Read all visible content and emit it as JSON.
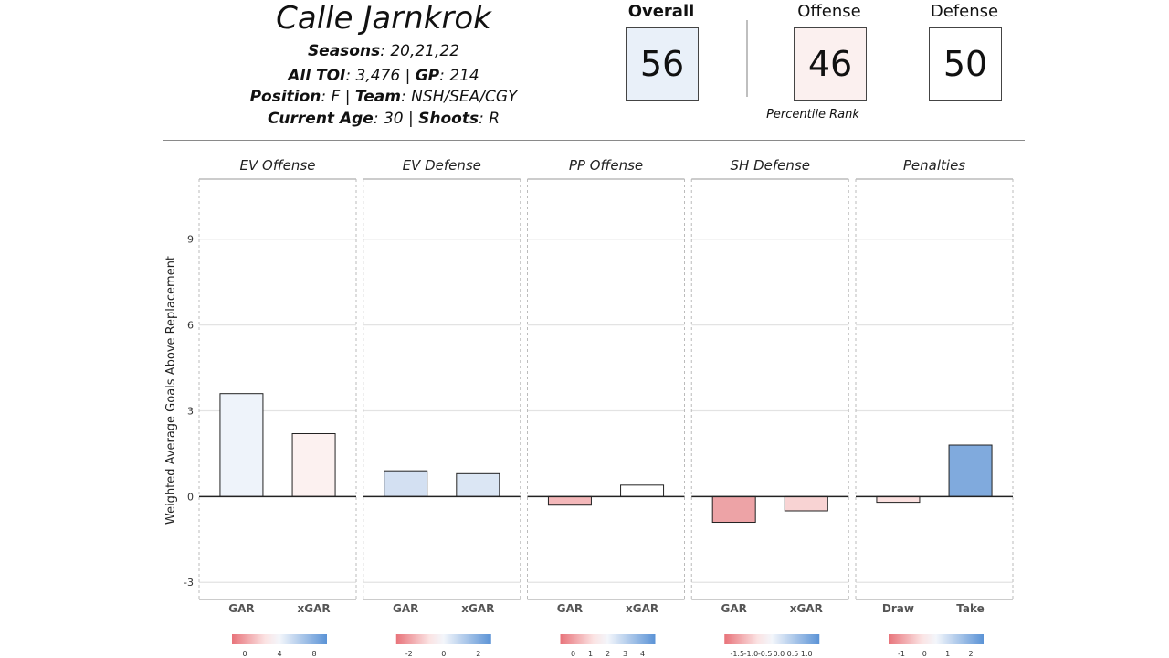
{
  "player": {
    "name": "Calle Jarnkrok",
    "seasons_label": "Seasons",
    "seasons_value": ": 20,21,22",
    "toi_label": "All TOI",
    "toi_value": ": 3,476 | ",
    "gp_label": "GP",
    "gp_value": ": 214",
    "position_label": "Position",
    "position_value": ": F | ",
    "team_label": "Team",
    "team_value": ": NSH/SEA/CGY",
    "age_label": "Current Age",
    "age_value": ": 30 | ",
    "shoots_label": "Shoots",
    "shoots_value": ": R"
  },
  "ratings": {
    "overall_label": "Overall",
    "overall_value": "56",
    "overall_color": "#e9f0f9",
    "offense_label": "Offense",
    "offense_value": "46",
    "offense_color": "#fbf0ef",
    "defense_label": "Defense",
    "defense_value": "50",
    "defense_color": "#ffffff",
    "percentile_label": "Percentile Rank"
  },
  "chart_data": {
    "type": "bar",
    "ylabel": "Weighted Average Goals Above Replacement",
    "ylim": [
      -3.6,
      11.1
    ],
    "yticks": [
      -3,
      0,
      3,
      6,
      9
    ],
    "grid": true,
    "panels": [
      {
        "title": "EV Offense",
        "categories": [
          "GAR",
          "xGAR"
        ],
        "values": [
          3.6,
          2.2
        ],
        "colors": [
          "#eef3fa",
          "#fcf1f0"
        ],
        "legend": {
          "ticks": [
            "0",
            "4",
            "8"
          ]
        }
      },
      {
        "title": "EV Defense",
        "categories": [
          "GAR",
          "xGAR"
        ],
        "values": [
          0.9,
          0.8
        ],
        "colors": [
          "#d3e0f2",
          "#dbe6f4"
        ],
        "legend": {
          "ticks": [
            "-2",
            "0",
            "2"
          ]
        }
      },
      {
        "title": "PP Offense",
        "categories": [
          "GAR",
          "xGAR"
        ],
        "values": [
          -0.3,
          0.4
        ],
        "colors": [
          "#f4b8ba",
          "#ffffff"
        ],
        "legend": {
          "ticks": [
            "0",
            "1",
            "2",
            "3",
            "4"
          ]
        }
      },
      {
        "title": "SH Defense",
        "categories": [
          "GAR",
          "xGAR"
        ],
        "values": [
          -0.9,
          -0.5
        ],
        "colors": [
          "#eda3a6",
          "#f8d3d3"
        ],
        "legend": {
          "ticks": [
            "-1.5",
            "-1.0",
            "-0.5",
            "0.0",
            "0.5",
            "1.0"
          ]
        }
      },
      {
        "title": "Penalties",
        "categories": [
          "Draw",
          "Take"
        ],
        "values": [
          -0.2,
          1.8
        ],
        "colors": [
          "#fbe1e0",
          "#80aadd"
        ],
        "legend": {
          "ticks": [
            "-1",
            "0",
            "1",
            "2"
          ]
        }
      }
    ]
  }
}
